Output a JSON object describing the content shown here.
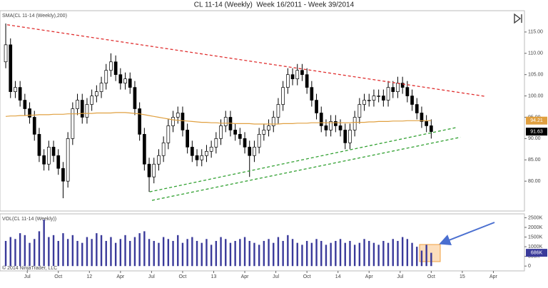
{
  "chart_data": [
    {
      "type": "candlestick",
      "title": "CL 11-14 (Weekly)  Week 16/2011 - Week 39/2014",
      "label": "SMA(CL 11-14 (Weekly),200)",
      "open": [
        108,
        112,
        101,
        102,
        99,
        97,
        95,
        91,
        86,
        84,
        88,
        86,
        83,
        80,
        90,
        97,
        99,
        95,
        98,
        100,
        101,
        103,
        106,
        108,
        105,
        103,
        104,
        102,
        97,
        91,
        84,
        81,
        84,
        86,
        89,
        93,
        95,
        96,
        92,
        88,
        86,
        85,
        86,
        87,
        88,
        90,
        93,
        95,
        92,
        91,
        90,
        88,
        86,
        88,
        91,
        92,
        93,
        95,
        98,
        102,
        105,
        104,
        106,
        105,
        102,
        99,
        96,
        93,
        92,
        94,
        93,
        92,
        89,
        92,
        95,
        98,
        99,
        99,
        100,
        100,
        99,
        102,
        101,
        103,
        102,
        100,
        98,
        96,
        94,
        93
      ],
      "high": [
        117,
        113.5,
        103.5,
        103.5,
        100.5,
        98.5,
        96.5,
        92.5,
        87.5,
        89.5,
        89.5,
        87.5,
        84.5,
        91.5,
        98.5,
        100.5,
        100.5,
        99.5,
        101.5,
        102.5,
        104.5,
        107.5,
        110,
        109.5,
        106.5,
        105.5,
        105.5,
        103.5,
        98.5,
        92.5,
        85.5,
        85.5,
        87.5,
        90.5,
        94.5,
        96.5,
        97.5,
        97.5,
        93.5,
        89.5,
        87.5,
        87.5,
        88.5,
        89.5,
        91.5,
        94.5,
        96.5,
        96.5,
        93.5,
        92.5,
        91.5,
        89.5,
        89.5,
        92.5,
        93.5,
        94.5,
        96.5,
        99.5,
        103.5,
        106.5,
        106.5,
        107.5,
        107.5,
        106.5,
        103.5,
        100.5,
        97.5,
        94.5,
        95.5,
        95.5,
        94.5,
        93.5,
        93.5,
        96.5,
        99.5,
        100.5,
        100.5,
        101.5,
        101.5,
        101.5,
        103.5,
        103.5,
        104.5,
        104.5,
        103.5,
        101.5,
        99.5,
        97.5,
        95.5,
        94.5
      ],
      "low": [
        106.5,
        99.5,
        99.5,
        97.5,
        95.5,
        93.5,
        89.5,
        84.5,
        82.5,
        82.5,
        84.5,
        81.5,
        76,
        78.5,
        88.5,
        95.5,
        93.5,
        93.5,
        96.5,
        98.5,
        99.5,
        101.5,
        104.5,
        103.5,
        101.5,
        101.5,
        100.5,
        95.5,
        89.5,
        82.5,
        77.5,
        79.5,
        82.5,
        84.5,
        87.5,
        91.5,
        93.5,
        90.5,
        86.5,
        84.5,
        83.5,
        83.5,
        84.5,
        85.5,
        86.5,
        88.5,
        91.5,
        90.5,
        89.5,
        88.5,
        86.5,
        81,
        84.5,
        86.5,
        89.5,
        90.5,
        91.5,
        93.5,
        96.5,
        100.5,
        102.5,
        102.5,
        103.5,
        100.5,
        97.5,
        94.5,
        91.5,
        90.5,
        90.5,
        91.5,
        90.5,
        87.5,
        87.5,
        90.5,
        93.5,
        96.5,
        97.5,
        97.5,
        98.5,
        97.5,
        97.5,
        99.5,
        99.5,
        100.5,
        98.5,
        96.5,
        94.5,
        92.5,
        91.5,
        90
      ],
      "close": [
        112,
        101,
        102,
        99,
        97,
        95,
        91,
        86,
        84,
        88,
        86,
        83,
        80,
        90,
        97,
        99,
        95,
        98,
        100,
        101,
        103,
        106,
        108,
        105,
        103,
        104,
        102,
        97,
        91,
        84,
        81,
        84,
        86,
        89,
        93,
        95,
        96,
        92,
        88,
        86,
        85,
        86,
        87,
        88,
        90,
        93,
        95,
        92,
        91,
        90,
        88,
        86,
        88,
        91,
        92,
        93,
        95,
        98,
        102,
        105,
        104,
        106,
        105,
        102,
        99,
        96,
        93,
        92,
        94,
        93,
        92,
        89,
        92,
        95,
        98,
        99,
        99,
        100,
        100,
        99,
        102,
        101,
        103,
        102,
        100,
        98,
        96,
        94,
        93,
        91.63
      ],
      "up_color": "#ffffff",
      "down_color": "#000000",
      "series": [
        {
          "name": "SMA(CL 11-14 (Weekly),200)",
          "color": "#e0a040",
          "values": [
            95.2,
            95.3,
            95.3,
            95.4,
            95.4,
            95.5,
            95.5,
            95.6,
            95.6,
            95.6,
            95.7,
            95.7,
            95.7,
            95.8,
            95.8,
            95.8,
            95.9,
            95.9,
            95.9,
            96.0,
            96.0,
            96.0,
            96.0,
            96.1,
            96.1,
            96.1,
            96.0,
            95.9,
            95.8,
            95.6,
            95.4,
            95.2,
            95.0,
            94.8,
            94.6,
            94.4,
            94.3,
            94.2,
            94.1,
            94.0,
            93.9,
            93.8,
            93.8,
            93.7,
            93.7,
            93.6,
            93.6,
            93.6,
            93.5,
            93.5,
            93.5,
            93.5,
            93.4,
            93.4,
            93.4,
            93.4,
            93.4,
            93.4,
            93.5,
            93.5,
            93.5,
            93.6,
            93.6,
            93.6,
            93.7,
            93.7,
            93.7,
            93.7,
            93.7,
            93.7,
            93.7,
            93.7,
            93.7,
            93.8,
            93.8,
            93.8,
            93.9,
            93.9,
            94.0,
            94.0,
            94.0,
            94.1,
            94.1,
            94.1,
            94.2,
            94.2,
            94.2,
            94.2,
            94.2,
            94.21
          ]
        }
      ],
      "trendlines": [
        {
          "color": "#e03030",
          "x": [
            0.3,
            100.3
          ],
          "values": [
            116.7,
            99.9
          ]
        },
        {
          "color": "#30a030",
          "x": [
            30.1,
            94.3
          ],
          "values": [
            77.5,
            92.6
          ]
        },
        {
          "color": "#30a030",
          "x": [
            30.6,
            95.1
          ],
          "values": [
            75.5,
            90.3
          ]
        }
      ],
      "last_markers": [
        {
          "value": 94.21,
          "color": "#e0a040"
        },
        {
          "value": 91.63,
          "color": "#000000"
        }
      ],
      "xlim": [
        -1.2,
        108.5
      ],
      "ylim": [
        73,
        120
      ],
      "yticks": [
        {
          "value": 80,
          "label": "80.00"
        },
        {
          "value": 85,
          "label": "85.00"
        },
        {
          "value": 90,
          "label": "90.00"
        },
        {
          "value": 95,
          "label": "95.00"
        },
        {
          "value": 100,
          "label": "100.00"
        },
        {
          "value": 105,
          "label": "105.00"
        },
        {
          "value": 110,
          "label": "110.00"
        },
        {
          "value": 115,
          "label": "115.00"
        }
      ]
    },
    {
      "type": "bar",
      "label": "VOL(CL 11-14 (Weekly))",
      "footnote": "© 2014 NinjaTrader, LLC",
      "color": "#3a3a9a",
      "values": [
        1300000,
        1500000,
        1400000,
        1700000,
        1600000,
        1200000,
        1400000,
        1800000,
        2400000,
        1500000,
        1600000,
        1300000,
        1700000,
        1400000,
        1600000,
        1300000,
        1200000,
        1500000,
        1400000,
        1700000,
        1600000,
        1300000,
        1500000,
        1200000,
        1400000,
        1600000,
        1300000,
        1500000,
        1700000,
        1800000,
        1400000,
        1300000,
        1200000,
        1500000,
        1400000,
        1300000,
        1600000,
        1200000,
        1400000,
        1500000,
        1300000,
        1200000,
        1400000,
        1100000,
        1300000,
        1500000,
        1400000,
        1200000,
        1300000,
        1400000,
        1500000,
        1300000,
        1200000,
        1100000,
        1300000,
        1400000,
        1200000,
        1500000,
        1300000,
        1600000,
        1400000,
        1200000,
        1100000,
        1300000,
        1200000,
        1400000,
        1300000,
        1100000,
        1200000,
        1300000,
        1400000,
        1200000,
        1300000,
        1100000,
        1200000,
        1400000,
        1300000,
        1200000,
        1100000,
        1300000,
        1200000,
        1400000,
        1300000,
        1500000,
        1400000,
        1200000,
        1000000,
        800000,
        1100000,
        686000
      ],
      "last_markers": [
        {
          "value": 686000,
          "label": "686K",
          "color": "#3a3a9a"
        }
      ],
      "xlim": [
        -1.2,
        108.5
      ],
      "xticks": [
        {
          "value": 4.5,
          "label": "Jul"
        },
        {
          "value": 11,
          "label": "Oct"
        },
        {
          "value": 17.5,
          "label": "12"
        },
        {
          "value": 24,
          "label": "Apr"
        },
        {
          "value": 30.5,
          "label": "Jul"
        },
        {
          "value": 37,
          "label": "Oct"
        },
        {
          "value": 43.5,
          "label": "13"
        },
        {
          "value": 50,
          "label": "Apr"
        },
        {
          "value": 56.5,
          "label": "Jul"
        },
        {
          "value": 63,
          "label": "Oct"
        },
        {
          "value": 69.5,
          "label": "14"
        },
        {
          "value": 76,
          "label": "Apr"
        },
        {
          "value": 82.5,
          "label": "Jul"
        },
        {
          "value": 89,
          "label": "Oct"
        },
        {
          "value": 95.5,
          "label": "15"
        },
        {
          "value": 102,
          "label": "Apr"
        }
      ],
      "ylim": [
        -250000,
        2700000
      ],
      "yticks": [
        {
          "value": 0,
          "label": "0"
        },
        {
          "value": 500000,
          "label": "500K"
        },
        {
          "value": 1000000,
          "label": "1000K"
        },
        {
          "value": 1500000,
          "label": "1500K"
        },
        {
          "value": 2000000,
          "label": "2000K"
        },
        {
          "value": 2500000,
          "label": "2500K"
        }
      ]
    }
  ]
}
